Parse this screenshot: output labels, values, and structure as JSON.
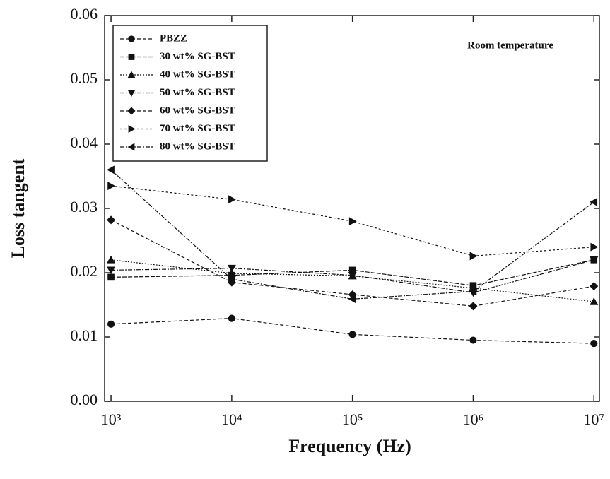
{
  "chart_data": {
    "type": "line",
    "x_label": "Frequency (Hz)",
    "y_label": "Loss tangent",
    "annotation": "Room temperature",
    "x": [
      1000,
      10000,
      100000,
      1000000,
      10000000
    ],
    "xlog": true,
    "xlim": [
      885,
      11100000
    ],
    "xticks": [
      {
        "value": 1000,
        "label": "10³"
      },
      {
        "value": 10000,
        "label": "10⁴"
      },
      {
        "value": 100000,
        "label": "10⁵"
      },
      {
        "value": 1000000,
        "label": "10⁶"
      },
      {
        "value": 10000000,
        "label": "10⁷"
      }
    ],
    "ylim": [
      0,
      0.06
    ],
    "yticks": [
      {
        "value": 0,
        "label": "0.00"
      },
      {
        "value": 0.01,
        "label": "0.01"
      },
      {
        "value": 0.02,
        "label": "0.02"
      },
      {
        "value": 0.03,
        "label": "0.03"
      },
      {
        "value": 0.04,
        "label": "0.04"
      },
      {
        "value": 0.05,
        "label": "0.05"
      },
      {
        "value": 0.06,
        "label": "0.06"
      }
    ],
    "series": [
      {
        "name": "PBZZ",
        "color": "#111111",
        "marker": "circle",
        "values": [
          0.012,
          0.0129,
          0.0104,
          0.0095,
          0.009
        ]
      },
      {
        "name": "30 wt% SG-BST",
        "color": "#111111",
        "marker": "square",
        "values": [
          0.0193,
          0.0196,
          0.0204,
          0.018,
          0.022
        ]
      },
      {
        "name": "40 wt% SG-BST",
        "color": "#111111",
        "marker": "triangle-up",
        "values": [
          0.022,
          0.0199,
          0.0195,
          0.0176,
          0.0155
        ]
      },
      {
        "name": "50 wt% SG-BST",
        "color": "#111111",
        "marker": "triangle-down",
        "values": [
          0.0204,
          0.0207,
          0.0196,
          0.0169,
          0.022
        ]
      },
      {
        "name": "60 wt% SG-BST",
        "color": "#111111",
        "marker": "diamond",
        "values": [
          0.0282,
          0.0185,
          0.0166,
          0.0148,
          0.0179
        ]
      },
      {
        "name": "70 wt% SG-BST",
        "color": "#111111",
        "marker": "triangle-right",
        "values": [
          0.0335,
          0.0314,
          0.028,
          0.0226,
          0.024
        ]
      },
      {
        "name": "80 wt% SG-BST",
        "color": "#111111",
        "marker": "triangle-left",
        "values": [
          0.036,
          0.019,
          0.0159,
          0.0171,
          0.031
        ]
      }
    ]
  }
}
